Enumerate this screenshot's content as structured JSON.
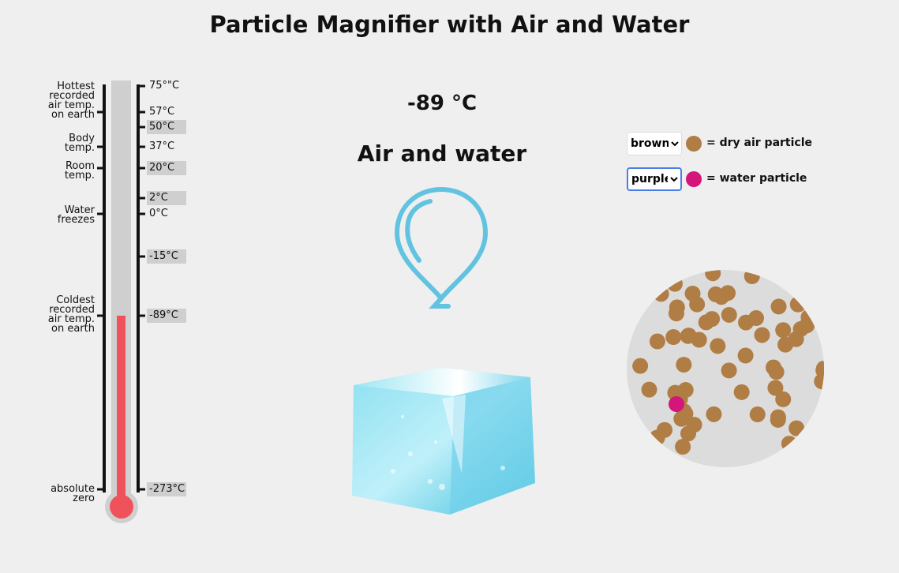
{
  "title": "Particle Magnifier with Air and Water",
  "temperature": "-89 °C",
  "state": "Air and water",
  "thermometer": {
    "left_labels": [
      {
        "lines": [
          "Hottest",
          "recorded",
          "air temp.",
          "on earth"
        ]
      },
      {
        "lines": [
          "Body",
          "temp."
        ]
      },
      {
        "lines": [
          "Room",
          "temp."
        ]
      },
      {
        "lines": [
          "Water",
          "freezes"
        ]
      },
      {
        "lines": [
          "Coldest",
          "recorded",
          "air temp.",
          "on earth"
        ]
      },
      {
        "lines": [
          "absolute",
          "zero"
        ]
      }
    ],
    "right_labels": [
      "75°\"C",
      "57°C",
      "50°C",
      "37°C",
      "20°C",
      "2°C",
      "0°C",
      "-15°C",
      "-89°C",
      "-273°C"
    ]
  },
  "legend": [
    {
      "option": "brown",
      "label": "= dry air particle"
    },
    {
      "option": "purple",
      "label": "= water particle"
    }
  ]
}
